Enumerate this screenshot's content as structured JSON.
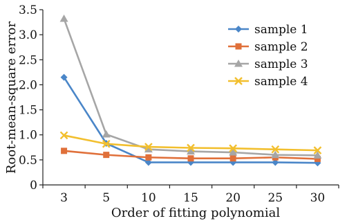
{
  "chart_data": {
    "type": "line",
    "title": "",
    "xlabel": "Order of fitting polynomial",
    "ylabel": "Root-mean-square error",
    "categories": [
      "3",
      "5",
      "10",
      "15",
      "20",
      "25",
      "30"
    ],
    "ylim": [
      0,
      3.5
    ],
    "yticks": [
      "0",
      "0.5",
      "1.0",
      "1.5",
      "2.0",
      "2.5",
      "3.0",
      "3.5"
    ],
    "grid": false,
    "legend": "top-right",
    "series": [
      {
        "name": "sample 1",
        "color": "#4A86C8",
        "marker": "diamond",
        "values": [
          2.15,
          0.83,
          0.45,
          0.45,
          0.45,
          0.45,
          0.44
        ]
      },
      {
        "name": "sample 2",
        "color": "#E0703A",
        "marker": "square",
        "values": [
          0.68,
          0.6,
          0.55,
          0.53,
          0.53,
          0.55,
          0.52
        ]
      },
      {
        "name": "sample 3",
        "color": "#A6A6A6",
        "marker": "triangle",
        "values": [
          3.32,
          1.01,
          0.71,
          0.67,
          0.65,
          0.6,
          0.59
        ]
      },
      {
        "name": "sample 4",
        "color": "#F2BF2E",
        "marker": "x",
        "values": [
          0.99,
          0.82,
          0.76,
          0.74,
          0.73,
          0.71,
          0.69
        ]
      }
    ]
  }
}
